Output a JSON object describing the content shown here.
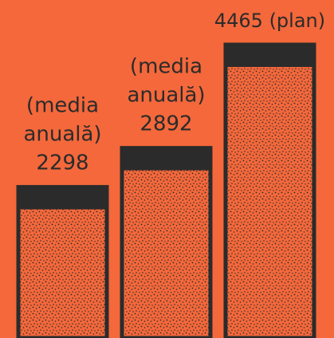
{
  "chart_data": {
    "type": "bar",
    "title": "",
    "xlabel": "",
    "ylabel": "",
    "categories": [
      "",
      "",
      ""
    ],
    "values": [
      2298,
      2892,
      4465
    ],
    "data_labels": [
      {
        "lines": [
          "(media",
          "anuală)",
          "2298"
        ]
      },
      {
        "lines": [
          "(media",
          "anuală)",
          "2892"
        ]
      },
      {
        "lines": [
          "4465 (plan)"
        ]
      }
    ],
    "grid": false,
    "legend": "none"
  },
  "colors": {
    "background": "#f4683b",
    "bar_fill": "#f4683b",
    "bar_cap": "#2b2b2b",
    "bar_stipple": "#2b2b2b",
    "text": "#2b2b2b"
  }
}
